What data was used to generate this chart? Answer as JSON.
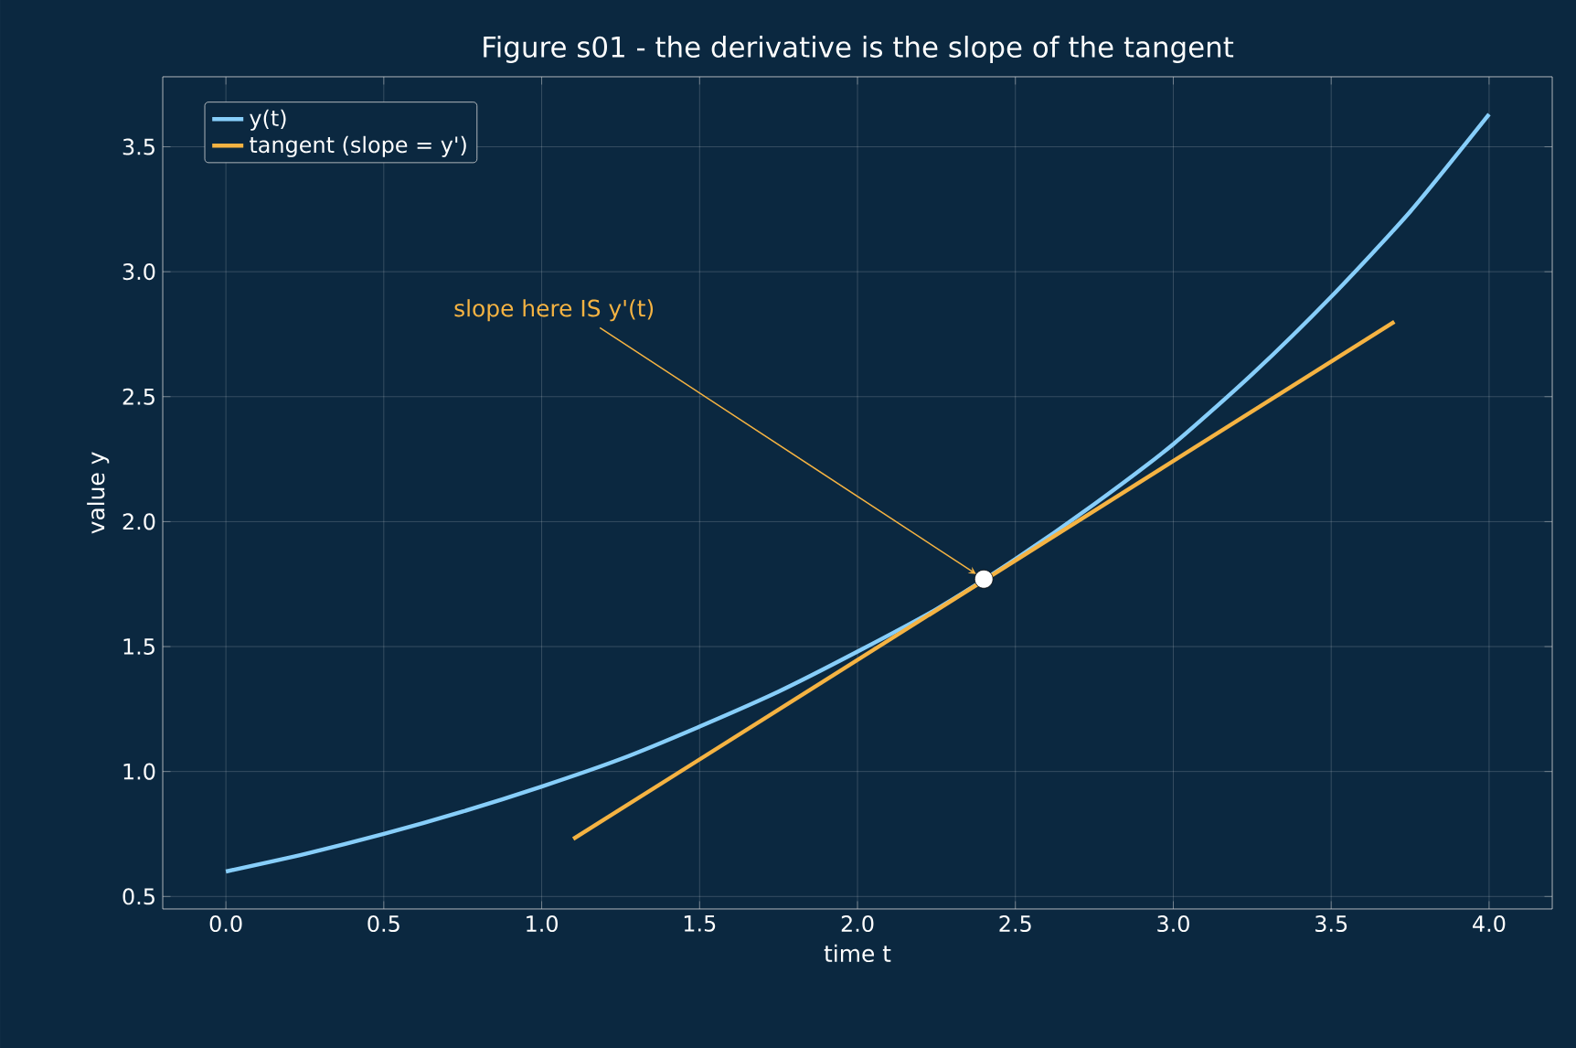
{
  "chart_data": {
    "type": "line",
    "title": "Figure s01 - the derivative is the slope of the tangent",
    "xlabel": "time t",
    "ylabel": "value y",
    "series": [
      {
        "name": "y(t)",
        "color": "#87cefa",
        "x": [
          0,
          0.25,
          0.5,
          0.75,
          1.0,
          1.25,
          1.5,
          1.75,
          2.0,
          2.25,
          2.5,
          2.75,
          3.0,
          3.25,
          3.5,
          3.75,
          4.0
        ],
        "values": [
          0.6,
          0.67,
          0.75,
          0.84,
          0.94,
          1.05,
          1.18,
          1.32,
          1.48,
          1.65,
          1.85,
          2.07,
          2.31,
          2.59,
          2.9,
          3.24,
          3.63
        ]
      },
      {
        "name": "tangent (slope = y')",
        "color": "#f5b342",
        "x": [
          1.1,
          3.7
        ],
        "values": [
          0.73,
          2.8
        ]
      },
      {
        "type": "scatter",
        "color": "#ffffff",
        "marker": "circle",
        "x": [
          2.4
        ],
        "values": [
          1.77
        ]
      }
    ],
    "annotations": [
      {
        "text": "slope here IS y'(t)",
        "x": 2.4,
        "y": 1.77
      }
    ],
    "xlim": [
      -0.2,
      4.2
    ],
    "xticks": [
      {
        "value": 0,
        "label": "0.0"
      },
      0.5,
      {
        "value": 1,
        "label": "1.0"
      },
      1.5,
      {
        "value": 2,
        "label": "2.0"
      },
      2.5,
      {
        "value": 3,
        "label": "3.0"
      },
      3.5,
      {
        "value": 4,
        "label": "4.0"
      }
    ],
    "ylim": [
      0.45,
      3.78
    ],
    "yticks": [
      0.5,
      {
        "value": 1,
        "label": "1.0"
      },
      1.5,
      {
        "value": 2,
        "label": "2.0"
      },
      2.5,
      {
        "value": 3,
        "label": "3.0"
      },
      3.5
    ],
    "grid": true,
    "legend": "top left"
  }
}
